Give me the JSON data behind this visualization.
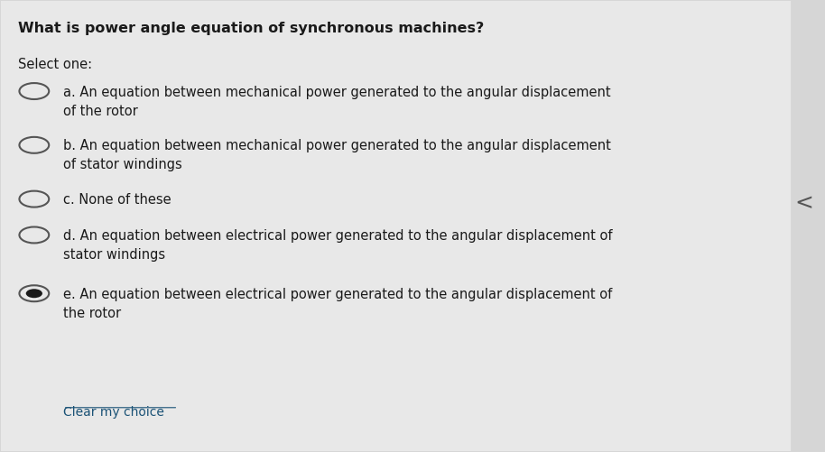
{
  "background_color": "#d6d6d6",
  "panel_color": "#e8e8e8",
  "title": "What is power angle equation of synchronous machines?",
  "select_one": "Select one:",
  "options": [
    {
      "label": "a.",
      "text": "An equation between mechanical power generated to the angular displacement\nof the rotor",
      "selected": false
    },
    {
      "label": "b.",
      "text": "An equation between mechanical power generated to the angular displacement\nof stator windings",
      "selected": false
    },
    {
      "label": "c.",
      "text": "None of these",
      "selected": false
    },
    {
      "label": "d.",
      "text": "An equation between electrical power generated to the angular displacement of\nstator windings",
      "selected": false
    },
    {
      "label": "e.",
      "text": "An equation between electrical power generated to the angular displacement of\nthe rotor",
      "selected": true
    }
  ],
  "clear_choice": "Clear my choice",
  "arrow": "<",
  "title_fontsize": 11.5,
  "body_fontsize": 10.5,
  "small_fontsize": 10.0,
  "text_color": "#1a1a1a",
  "link_color": "#1a5276",
  "radio_color": "#555555",
  "selected_radio_fill": "#1a1a1a",
  "unselected_radio_fill": "#e8e8e8"
}
